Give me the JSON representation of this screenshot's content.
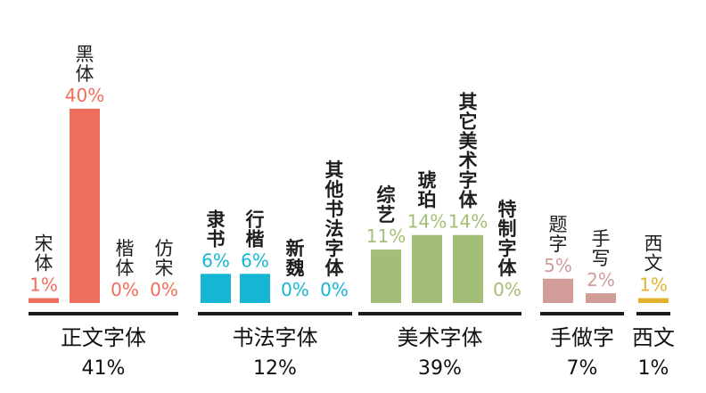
{
  "chart_data": {
    "type": "bar",
    "title": "",
    "xlabel": "",
    "ylabel": "",
    "ylim": [
      0,
      40
    ],
    "groups": [
      {
        "name": "正文字体",
        "total": "41%",
        "color": "#ef6e5b",
        "items": [
          {
            "name": "宋体",
            "value": 1,
            "label": "1%"
          },
          {
            "name": "黑体",
            "value": 40,
            "label": "40%"
          },
          {
            "name": "楷体",
            "value": 0,
            "label": "0%"
          },
          {
            "name": "仿宋",
            "value": 0,
            "label": "0%"
          }
        ]
      },
      {
        "name": "书法字体",
        "total": "12%",
        "color": "#15b6d3",
        "items": [
          {
            "name": "隶书",
            "value": 6,
            "label": "6%"
          },
          {
            "name": "行楷",
            "value": 6,
            "label": "6%"
          },
          {
            "name": "新魏",
            "value": 0,
            "label": "0%"
          },
          {
            "name": "其他书法字体",
            "value": 0,
            "label": "0%"
          }
        ]
      },
      {
        "name": "美术字体",
        "total": "39%",
        "color": "#a3be76",
        "items": [
          {
            "name": "综艺",
            "value": 11,
            "label": "11%"
          },
          {
            "name": "琥珀",
            "value": 14,
            "label": "14%"
          },
          {
            "name": "其它美术字体",
            "value": 14,
            "label": "14%"
          },
          {
            "name": "特制字体",
            "value": 0,
            "label": "0%"
          }
        ]
      },
      {
        "name": "手做字",
        "total": "7%",
        "color": "#d29d98",
        "items": [
          {
            "name": "题字",
            "value": 5,
            "label": "5%"
          },
          {
            "name": "手写",
            "value": 2,
            "label": "2%"
          }
        ]
      },
      {
        "name": "西文",
        "total": "1%",
        "color": "#e4b22c",
        "items": [
          {
            "name": "西文",
            "value": 1,
            "label": "1%"
          }
        ]
      }
    ]
  }
}
